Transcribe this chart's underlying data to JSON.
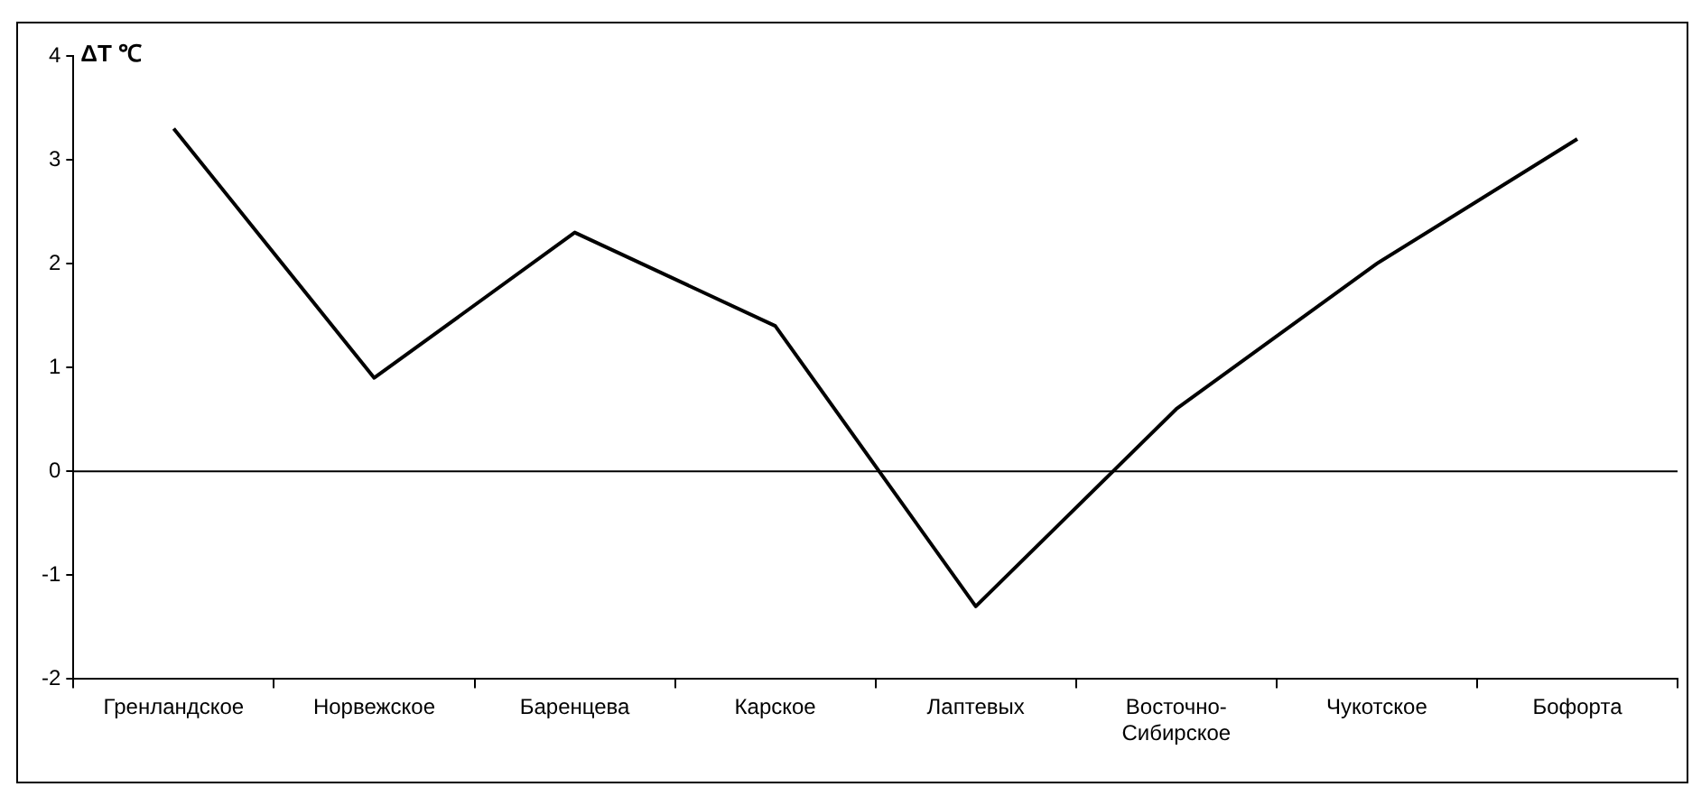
{
  "chart_data": {
    "type": "line",
    "ylabel": "ΔT ℃",
    "categories": [
      "Гренландское",
      "Норвежское",
      "Баренцева",
      "Карское",
      "Лаптевых",
      "Восточно-Сибирское",
      "Чукотское",
      "Бофорта"
    ],
    "series": [
      {
        "color": "#000000",
        "values": [
          3.3,
          0.9,
          2.3,
          1.4,
          -1.3,
          0.6,
          2.0,
          3.2
        ]
      }
    ],
    "ylim": [
      -2,
      4
    ],
    "yticks": [
      -2,
      -1,
      0,
      1,
      2,
      3,
      4
    ],
    "ref_lines": [
      {
        "axis": "y",
        "value": 0,
        "color": "#000000"
      }
    ],
    "grid": false,
    "legend": false,
    "marker": "none",
    "line_style": "solid"
  }
}
